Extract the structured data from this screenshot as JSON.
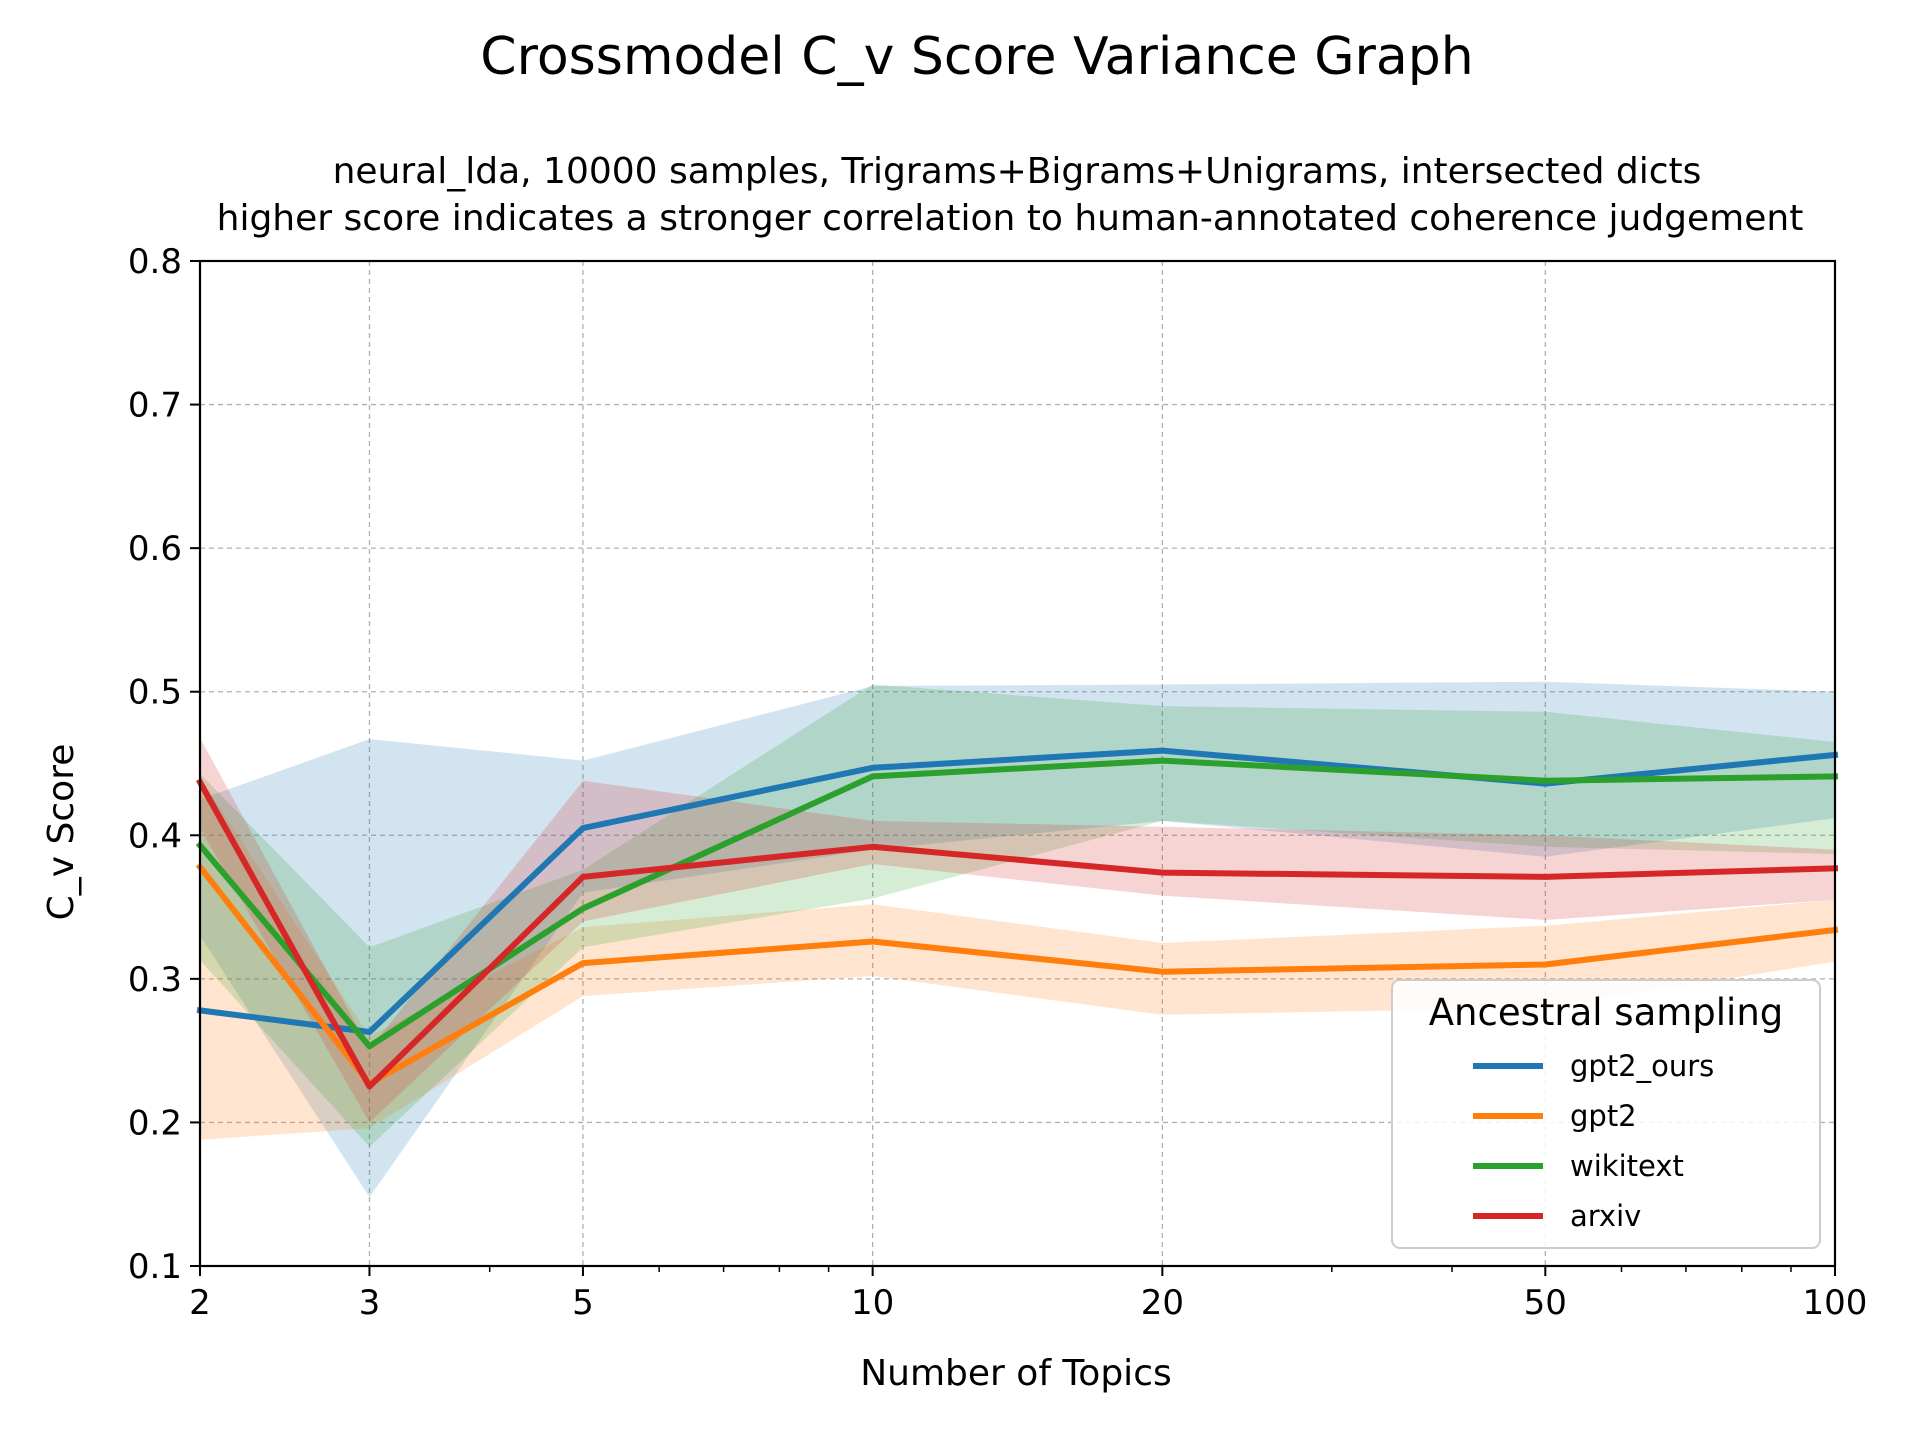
{
  "chart_data": {
    "type": "line",
    "title": "Crossmodel C_v Score Variance Graph",
    "subtitle_lines": [
      "neural_lda, 10000 samples, Trigrams+Bigrams+Unigrams, intersected dicts",
      "higher score indicates a stronger correlation to human-annotated coherence judgement"
    ],
    "xlabel": "Number of Topics",
    "ylabel": "C_v Score",
    "x_scale": "log",
    "x": [
      2,
      3,
      5,
      10,
      20,
      50,
      100
    ],
    "x_tick_labels": [
      "2",
      "3",
      "5",
      "10",
      "20",
      "50",
      "100"
    ],
    "xlim": [
      2,
      100
    ],
    "ylim": [
      0.1,
      0.8
    ],
    "y_ticks": [
      0.1,
      0.2,
      0.3,
      0.4,
      0.5,
      0.6,
      0.7,
      0.8
    ],
    "y_tick_labels": [
      "0.1",
      "0.2",
      "0.3",
      "0.4",
      "0.5",
      "0.6",
      "0.7",
      "0.8"
    ],
    "grid": true,
    "legend_title": "Ancestral sampling",
    "legend_position": "lower right",
    "series": [
      {
        "name": "gpt2_ours",
        "color": "#1f77b4",
        "values": [
          0.278,
          0.263,
          0.405,
          0.447,
          0.459,
          0.436,
          0.456
        ],
        "lower": [
          0.33,
          0.148,
          0.36,
          0.39,
          0.41,
          0.385,
          0.412
        ],
        "upper": [
          0.425,
          0.467,
          0.452,
          0.504,
          0.505,
          0.507,
          0.5
        ]
      },
      {
        "name": "gpt2",
        "color": "#ff7f0e",
        "values": [
          0.378,
          0.227,
          0.311,
          0.326,
          0.305,
          0.31,
          0.334
        ],
        "lower": [
          0.188,
          0.196,
          0.288,
          0.302,
          0.275,
          0.28,
          0.312
        ],
        "upper": [
          0.44,
          0.26,
          0.336,
          0.352,
          0.325,
          0.337,
          0.355
        ]
      },
      {
        "name": "wikitext",
        "color": "#2ca02c",
        "values": [
          0.393,
          0.253,
          0.349,
          0.441,
          0.452,
          0.438,
          0.441
        ],
        "lower": [
          0.313,
          0.183,
          0.322,
          0.356,
          0.41,
          0.392,
          0.387
        ],
        "upper": [
          0.443,
          0.322,
          0.376,
          0.505,
          0.49,
          0.486,
          0.465
        ]
      },
      {
        "name": "arxiv",
        "color": "#d62728",
        "values": [
          0.437,
          0.225,
          0.371,
          0.392,
          0.374,
          0.371,
          0.377
        ],
        "lower": [
          0.405,
          0.2,
          0.34,
          0.38,
          0.358,
          0.341,
          0.355
        ],
        "upper": [
          0.468,
          0.251,
          0.438,
          0.41,
          0.406,
          0.4,
          0.39
        ]
      }
    ]
  }
}
